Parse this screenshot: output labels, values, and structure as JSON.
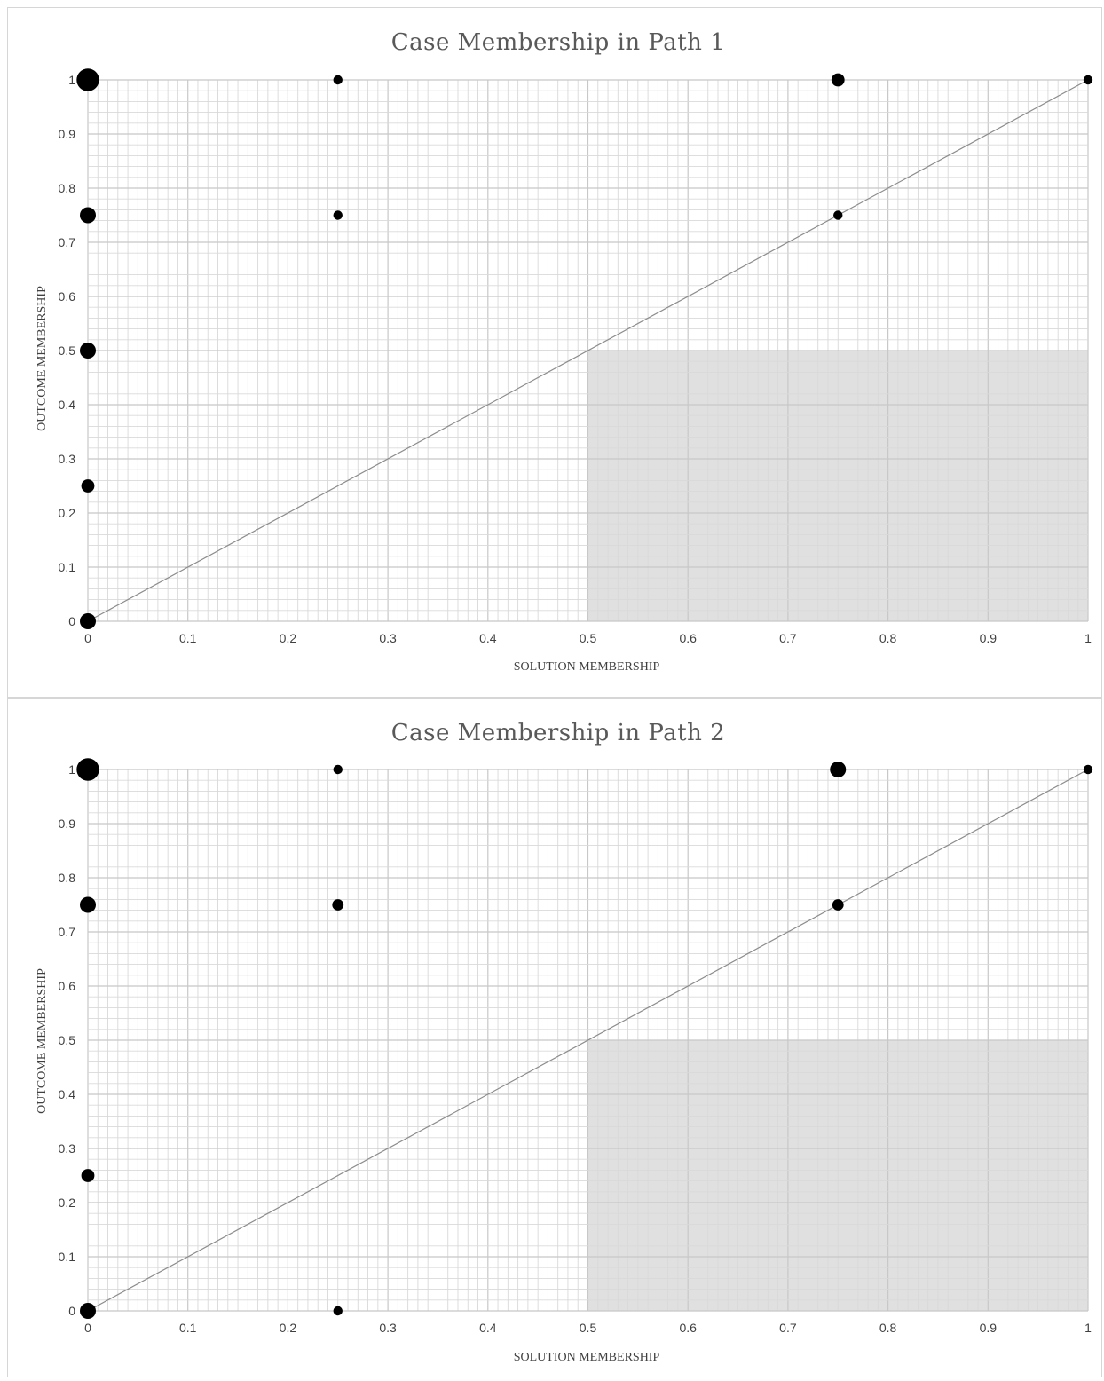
{
  "chart_data": [
    {
      "type": "scatter",
      "title": "Case Membership in Path 1",
      "xlabel": "SOLUTION MEMBERSHIP",
      "ylabel": "OUTCOME MEMBERSHIP",
      "xlim": [
        0,
        1
      ],
      "ylim": [
        0,
        1
      ],
      "x_ticks": [
        "0",
        "0.1",
        "0.2",
        "0.3",
        "0.4",
        "0.5",
        "0.6",
        "0.7",
        "0.8",
        "0.9",
        "1"
      ],
      "y_ticks": [
        "0",
        "0.1",
        "0.2",
        "0.3",
        "0.4",
        "0.5",
        "0.6",
        "0.7",
        "0.8",
        "0.9",
        "1"
      ],
      "grid": true,
      "diagonal_line": [
        [
          0,
          0
        ],
        [
          1,
          1
        ]
      ],
      "shaded_region": {
        "x": [
          0.5,
          1
        ],
        "y": [
          0,
          0.5
        ],
        "color": "#e0e0e0"
      },
      "points": [
        {
          "x": 0,
          "y": 1,
          "weight": 6
        },
        {
          "x": 0.25,
          "y": 1,
          "weight": 1
        },
        {
          "x": 0.75,
          "y": 1,
          "weight": 2
        },
        {
          "x": 1,
          "y": 1,
          "weight": 1
        },
        {
          "x": 0,
          "y": 0.75,
          "weight": 3
        },
        {
          "x": 0.25,
          "y": 0.75,
          "weight": 1
        },
        {
          "x": 0.75,
          "y": 0.75,
          "weight": 1
        },
        {
          "x": 0,
          "y": 0.5,
          "weight": 3
        },
        {
          "x": 0,
          "y": 0.25,
          "weight": 2
        },
        {
          "x": 0,
          "y": 0,
          "weight": 3
        }
      ]
    },
    {
      "type": "scatter",
      "title": "Case Membership in Path 2",
      "xlabel": "SOLUTION MEMBERSHIP",
      "ylabel": "OUTCOME MEMBERSHIP",
      "xlim": [
        0,
        1
      ],
      "ylim": [
        0,
        1
      ],
      "x_ticks": [
        "0",
        "0.1",
        "0.2",
        "0.3",
        "0.4",
        "0.5",
        "0.6",
        "0.7",
        "0.8",
        "0.9",
        "1"
      ],
      "y_ticks": [
        "0",
        "0.1",
        "0.2",
        "0.3",
        "0.4",
        "0.5",
        "0.6",
        "0.7",
        "0.8",
        "0.9",
        "1"
      ],
      "grid": true,
      "diagonal_line": [
        [
          0,
          0
        ],
        [
          1,
          1
        ]
      ],
      "shaded_region": {
        "x": [
          0.5,
          1
        ],
        "y": [
          0,
          0.5
        ],
        "color": "#e0e0e0"
      },
      "points": [
        {
          "x": 0,
          "y": 1,
          "weight": 6
        },
        {
          "x": 0.25,
          "y": 1,
          "weight": 1
        },
        {
          "x": 0.75,
          "y": 1,
          "weight": 3
        },
        {
          "x": 1,
          "y": 1,
          "weight": 1
        },
        {
          "x": 0,
          "y": 0.75,
          "weight": 3
        },
        {
          "x": 0.25,
          "y": 0.75,
          "weight": 1.5
        },
        {
          "x": 0.75,
          "y": 0.75,
          "weight": 1.5
        },
        {
          "x": 0,
          "y": 0.25,
          "weight": 2
        },
        {
          "x": 0,
          "y": 0,
          "weight": 3
        },
        {
          "x": 0.25,
          "y": 0,
          "weight": 1
        }
      ]
    }
  ]
}
